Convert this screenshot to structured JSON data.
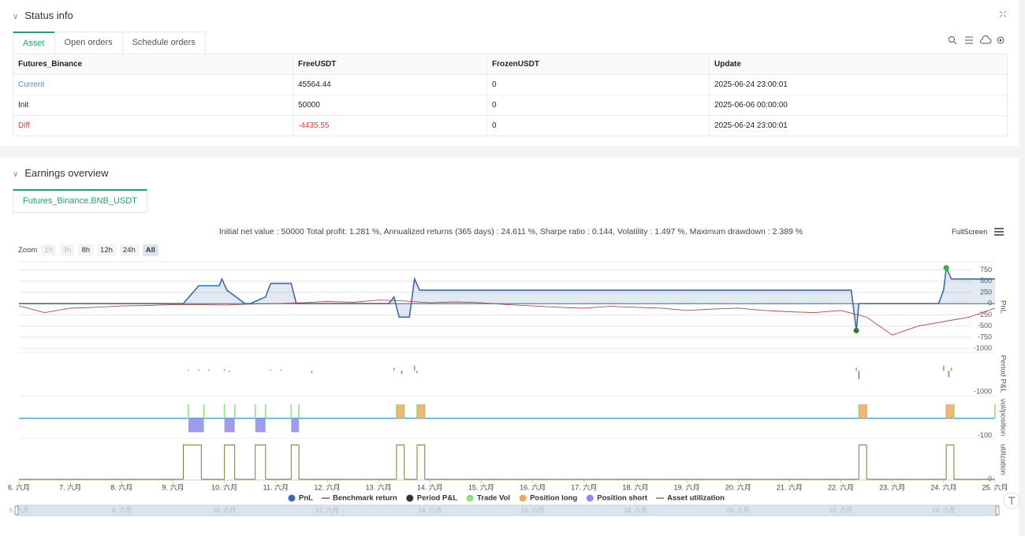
{
  "status": {
    "title": "Status info",
    "tabs": [
      "Asset",
      "Open orders",
      "Schedule orders"
    ],
    "table": {
      "columns": [
        "Futures_Binance",
        "FreeUSDT",
        "FrozenUSDT",
        "Update"
      ],
      "rows": [
        [
          "Current",
          "45564.44",
          "0",
          "2025-06-24 23:00:01"
        ],
        [
          "Init",
          "50000",
          "0",
          "2025-06-06 00:00:00"
        ],
        [
          "Diff",
          "-4435.55",
          "0",
          "2025-06-24 23:00:01"
        ]
      ]
    }
  },
  "earnings": {
    "title": "Earnings overview",
    "tabs": [
      "Futures_Binance.BNB_USDT"
    ],
    "summary": "Initial net value : 50000 Total profit: 1.281 %, Annualized returns (365 days) : 24.611 %, Sharpe ratio : 0.144, Volatility : 1.497 %, Maximum drawdown : 2.389 %",
    "fullscreen": "FullScreen",
    "zoom_label": "Zoom",
    "zoom_buttons": [
      "1h",
      "3h",
      "8h",
      "12h",
      "24h",
      "All"
    ]
  },
  "chart_data": {
    "type": "line",
    "xlim": [
      6,
      25
    ],
    "xticks": [
      {
        "value": 6,
        "label": "6. 六月"
      },
      {
        "value": 7,
        "label": "7. 六月"
      },
      {
        "value": 8,
        "label": "8. 六月"
      },
      {
        "value": 9,
        "label": "9. 六月"
      },
      {
        "value": 10,
        "label": "10. 六月"
      },
      {
        "value": 11,
        "label": "11. 六月"
      },
      {
        "value": 12,
        "label": "12. 六月"
      },
      {
        "value": 13,
        "label": "13. 六月"
      },
      {
        "value": 14,
        "label": "14. 六月"
      },
      {
        "value": 15,
        "label": "15. 六月"
      },
      {
        "value": 16,
        "label": "16. 六月"
      },
      {
        "value": 17,
        "label": "17. 六月"
      },
      {
        "value": 18,
        "label": "18. 六月"
      },
      {
        "value": 19,
        "label": "19. 六月"
      },
      {
        "value": 20,
        "label": "20. 六月"
      },
      {
        "value": 21,
        "label": "21. 六月"
      },
      {
        "value": 22,
        "label": "22. 六月"
      },
      {
        "value": 23,
        "label": "23. 六月"
      },
      {
        "value": 24,
        "label": "24. 六月"
      },
      {
        "value": 25,
        "label": "25. 六月"
      }
    ],
    "panes": [
      {
        "axis_title": "PnL",
        "ylim": [
          -1050,
          900
        ],
        "yticks": [
          750,
          500,
          250,
          0,
          -250,
          -500,
          -750,
          -1000
        ],
        "grid": true,
        "series": [
          {
            "name": "PnL",
            "type": "area",
            "color": "#3d6aa8",
            "x": [
              6,
              9.2,
              9.35,
              9.5,
              9.9,
              9.95,
              10.05,
              10.4,
              10.5,
              10.8,
              10.9,
              11.3,
              11.4,
              13.2,
              13.3,
              13.4,
              13.6,
              13.7,
              13.8,
              22.2,
              22.3,
              22.35,
              23.9,
              24.0,
              24.05,
              24.15,
              25
            ],
            "values": [
              0,
              0,
              200,
              400,
              400,
              550,
              300,
              0,
              0,
              150,
              450,
              450,
              0,
              0,
              150,
              -300,
              -300,
              550,
              300,
              300,
              -600,
              0,
              0,
              300,
              800,
              550,
              550
            ]
          },
          {
            "name": "Benchmark return",
            "type": "line",
            "color": "#b5473f",
            "x": [
              6,
              6.5,
              7,
              7.5,
              8,
              8.5,
              9,
              9.5,
              10,
              10.5,
              11,
              11.5,
              12,
              12.5,
              13,
              13.5,
              14,
              14.5,
              15,
              15.5,
              16,
              16.5,
              17,
              17.5,
              18,
              18.5,
              19,
              19.5,
              20,
              20.5,
              21,
              21.5,
              22,
              22.5,
              23,
              23.5,
              24,
              24.5,
              25
            ],
            "values": [
              -50,
              -200,
              -100,
              -80,
              -50,
              -40,
              -20,
              -20,
              -30,
              -10,
              0,
              20,
              50,
              30,
              80,
              60,
              20,
              40,
              20,
              -20,
              -50,
              -80,
              -100,
              -60,
              -80,
              -100,
              -150,
              -120,
              -100,
              -150,
              -180,
              -200,
              -150,
              -300,
              -700,
              -500,
              -400,
              -300,
              -100
            ]
          }
        ]
      },
      {
        "axis_title": "Period P&L",
        "ylim": [
          -1100,
          800
        ],
        "yticks": [
          -1000
        ],
        "grid": false,
        "series": [
          {
            "name": "Period P&L",
            "type": "column",
            "color": "#333333",
            "positive_color": "#9aab4a",
            "negative_color": "#7a7ad8",
            "x": [
              9.3,
              9.5,
              9.7,
              10.0,
              10.1,
              10.9,
              11.1,
              11.7,
              13.3,
              13.45,
              13.7,
              13.75,
              22.3,
              22.35,
              24.0,
              24.1,
              24.15
            ],
            "values": [
              60,
              60,
              60,
              80,
              -60,
              60,
              60,
              -100,
              150,
              -150,
              250,
              -100,
              150,
              -400,
              250,
              -300,
              150
            ]
          }
        ]
      },
      {
        "axis_title": "vol/position",
        "ylim": [
          -110,
          120
        ],
        "yticks": [
          -100
        ],
        "grid": false,
        "series": [
          {
            "name": "Trade Vol",
            "type": "column",
            "color": "#8fe37a",
            "x": [
              9.3,
              9.6,
              10.0,
              10.2,
              10.6,
              10.8,
              11.3,
              11.45,
              13.35,
              13.5,
              13.75,
              13.9,
              22.35,
              22.5,
              24.05,
              24.2,
              25
            ],
            "values": [
              80,
              80,
              80,
              80,
              80,
              80,
              80,
              80,
              80,
              80,
              80,
              80,
              80,
              80,
              80,
              80,
              80
            ]
          },
          {
            "name": "Position long",
            "type": "step-area",
            "color": "#f0a860",
            "x": [
              6,
              13.35,
              13.5,
              13.75,
              13.9,
              22.35,
              22.5,
              24.05,
              24.2
            ],
            "values": [
              0,
              80,
              0,
              80,
              0,
              80,
              0,
              80,
              0
            ]
          },
          {
            "name": "Position short",
            "type": "step-area",
            "color": "#8c8ce8",
            "x": [
              6,
              9.3,
              9.6,
              10.0,
              10.2,
              10.6,
              10.8,
              11.3,
              11.45
            ],
            "values": [
              0,
              -80,
              0,
              -80,
              0,
              -80,
              0,
              -80,
              0
            ]
          }
        ]
      },
      {
        "axis_title": "utilization",
        "ylim": [
          0,
          1.15
        ],
        "yticks": [
          0
        ],
        "grid": false,
        "series": [
          {
            "name": "Asset utilization",
            "type": "step-line",
            "color": "#7d7d3a",
            "x": [
              6,
              9.2,
              9.55,
              10.0,
              10.2,
              10.6,
              10.8,
              11.3,
              11.45,
              13.35,
              13.5,
              13.75,
              13.9,
              22.35,
              22.5,
              24.05,
              24.2
            ],
            "values": [
              0,
              1,
              0,
              1,
              0,
              1,
              0,
              1,
              0,
              1,
              0,
              1,
              0,
              1,
              0,
              1,
              0
            ]
          }
        ]
      }
    ]
  }
}
